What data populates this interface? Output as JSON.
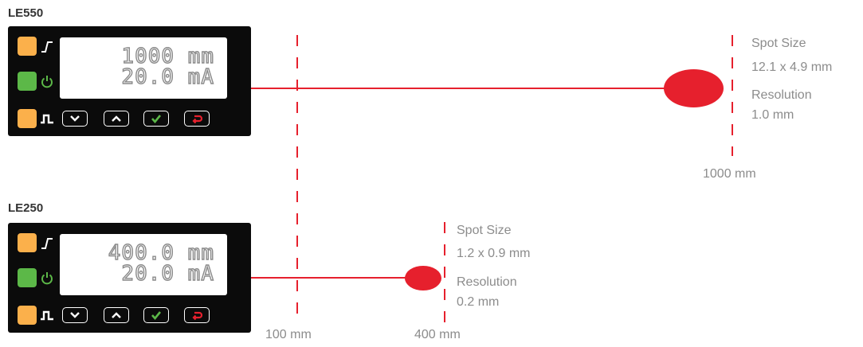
{
  "colors": {
    "beam": "#e6202d",
    "led_orange": "#fbb04b",
    "led_green": "#5cb848",
    "device_body": "#0b0b0b",
    "text_gray": "#8c8c8c"
  },
  "icons": [
    "rising-edge-icon",
    "power-icon",
    "pulse-icon",
    "chevron-down-icon",
    "chevron-up-icon",
    "check-icon",
    "return-icon"
  ],
  "devices": [
    {
      "model": "LE550",
      "line1": "1000 mm",
      "line2": " 20.0 mA",
      "spot_label": "Spot Size",
      "spot_value": "12.1 x 4.9 mm",
      "res_label": "Resolution",
      "res_value": "1.0 mm",
      "distance": "1000 mm"
    },
    {
      "model": "LE250",
      "line1": "400.0 mm",
      "line2": " 20.0 mA",
      "spot_label": "Spot Size",
      "spot_value": "1.2 x 0.9 mm",
      "res_label": "Resolution",
      "res_value": "0.2 mm",
      "distance": "400 mm"
    }
  ],
  "reference": {
    "distance": "100 mm"
  }
}
